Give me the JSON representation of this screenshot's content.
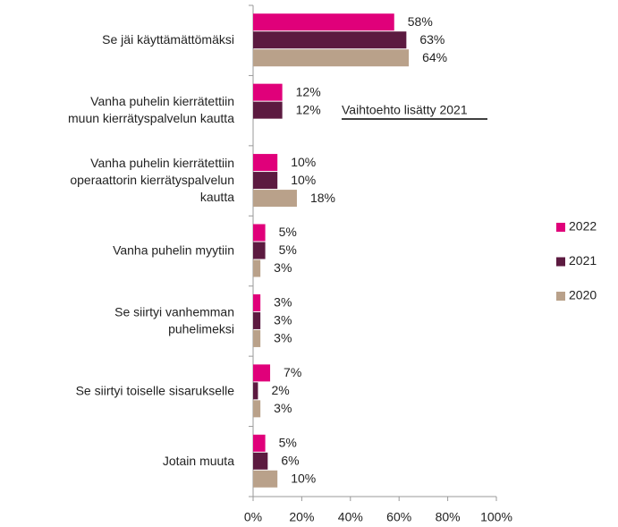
{
  "chart_data": {
    "type": "bar",
    "orientation": "horizontal",
    "categories": [
      "Se jäi käyttämättömäksi",
      "Vanha puhelin kierrätettiin\nmuun kierrätyspalvelun kautta",
      "Vanha puhelin kierrätettiin\noperaattorin kierrätyspalvelun\nkautta",
      "Vanha puhelin myytiin",
      "Se siirtyi vanhemman\npuhelimeksi",
      "Se siirtyi toiselle sisarukselle",
      "Jotain muuta"
    ],
    "series": [
      {
        "name": "2022",
        "color": "#e0007a",
        "values": [
          58,
          12,
          10,
          5,
          3,
          7,
          5
        ],
        "value_labels": [
          "58%",
          "12%",
          "10%",
          "5%",
          "3%",
          "7%",
          "5%"
        ]
      },
      {
        "name": "2021",
        "color": "#5c1a40",
        "values": [
          63,
          12,
          10,
          5,
          3,
          2,
          6
        ],
        "value_labels": [
          "63%",
          "12%",
          "10%",
          "5%",
          "3%",
          "2%",
          "6%"
        ]
      },
      {
        "name": "2020",
        "color": "#b9a18a",
        "values": [
          64,
          null,
          18,
          3,
          3,
          3,
          10
        ],
        "value_labels": [
          "64%",
          null,
          "18%",
          "3%",
          "3%",
          "3%",
          "10%"
        ]
      }
    ],
    "xlim": [
      0,
      100
    ],
    "xticks": [
      {
        "value": 0,
        "label": "0%"
      },
      {
        "value": 20,
        "label": "20%"
      },
      {
        "value": 40,
        "label": "40%"
      },
      {
        "value": 60,
        "label": "60%"
      },
      {
        "value": 80,
        "label": "80%"
      },
      {
        "value": 100,
        "label": "100%"
      }
    ],
    "annotation": "Vaihtoehto lisätty 2021",
    "legend": "right"
  }
}
